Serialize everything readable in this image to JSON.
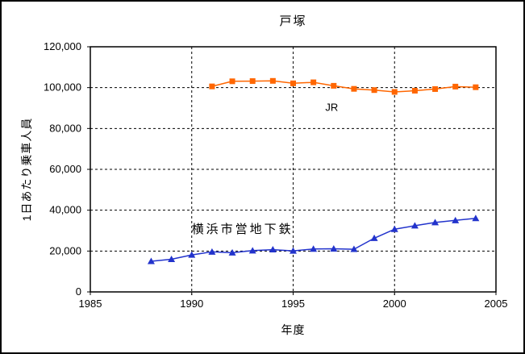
{
  "chart_data": {
    "type": "line",
    "title": "戸塚",
    "xlabel": "年度",
    "ylabel": "1日あたり乗車人員",
    "xlim": [
      1985,
      2005
    ],
    "ylim": [
      0,
      120000
    ],
    "x_ticks": [
      1985,
      1990,
      1995,
      2000,
      2005
    ],
    "y_ticks": [
      0,
      20000,
      40000,
      60000,
      80000,
      100000,
      120000
    ],
    "x_gridlines": [
      1990,
      1995,
      2000
    ],
    "y_gridlines": [
      20000,
      40000,
      60000,
      80000,
      100000
    ],
    "grid_style": "dashed",
    "background_color": "#FFFFFF",
    "frame_color": "#000000",
    "series": [
      {
        "name": "JR",
        "id": "jr",
        "color": "#FF6600",
        "marker": "square",
        "points": [
          [
            1991,
            100600
          ],
          [
            1992,
            103100
          ],
          [
            1993,
            103200
          ],
          [
            1994,
            103300
          ],
          [
            1995,
            102100
          ],
          [
            1996,
            102600
          ],
          [
            1997,
            100900
          ],
          [
            1998,
            99400
          ],
          [
            1999,
            98800
          ],
          [
            2000,
            97900
          ],
          [
            2001,
            98500
          ],
          [
            2002,
            99300
          ],
          [
            2003,
            100500
          ],
          [
            2004,
            100200
          ]
        ]
      },
      {
        "name": "横浜市営地下鉄",
        "id": "subway",
        "color": "#2233CC",
        "marker": "triangle-up",
        "points": [
          [
            1988,
            15000
          ],
          [
            1989,
            16000
          ],
          [
            1990,
            18100
          ],
          [
            1991,
            19600
          ],
          [
            1992,
            19200
          ],
          [
            1993,
            20200
          ],
          [
            1994,
            20700
          ],
          [
            1995,
            20100
          ],
          [
            1996,
            21000
          ],
          [
            1997,
            21100
          ],
          [
            1998,
            20900
          ],
          [
            1999,
            26300
          ],
          [
            2000,
            30700
          ],
          [
            2001,
            32400
          ],
          [
            2002,
            34000
          ],
          [
            2003,
            35000
          ],
          [
            2004,
            36000
          ]
        ]
      }
    ],
    "annotations": [
      {
        "text": "JR",
        "x": 1996.9,
        "y": 90500,
        "color": "#000000"
      },
      {
        "text": "横浜市営地下鉄",
        "x": 1992.5,
        "y": 30800,
        "color": "#000000"
      }
    ]
  }
}
